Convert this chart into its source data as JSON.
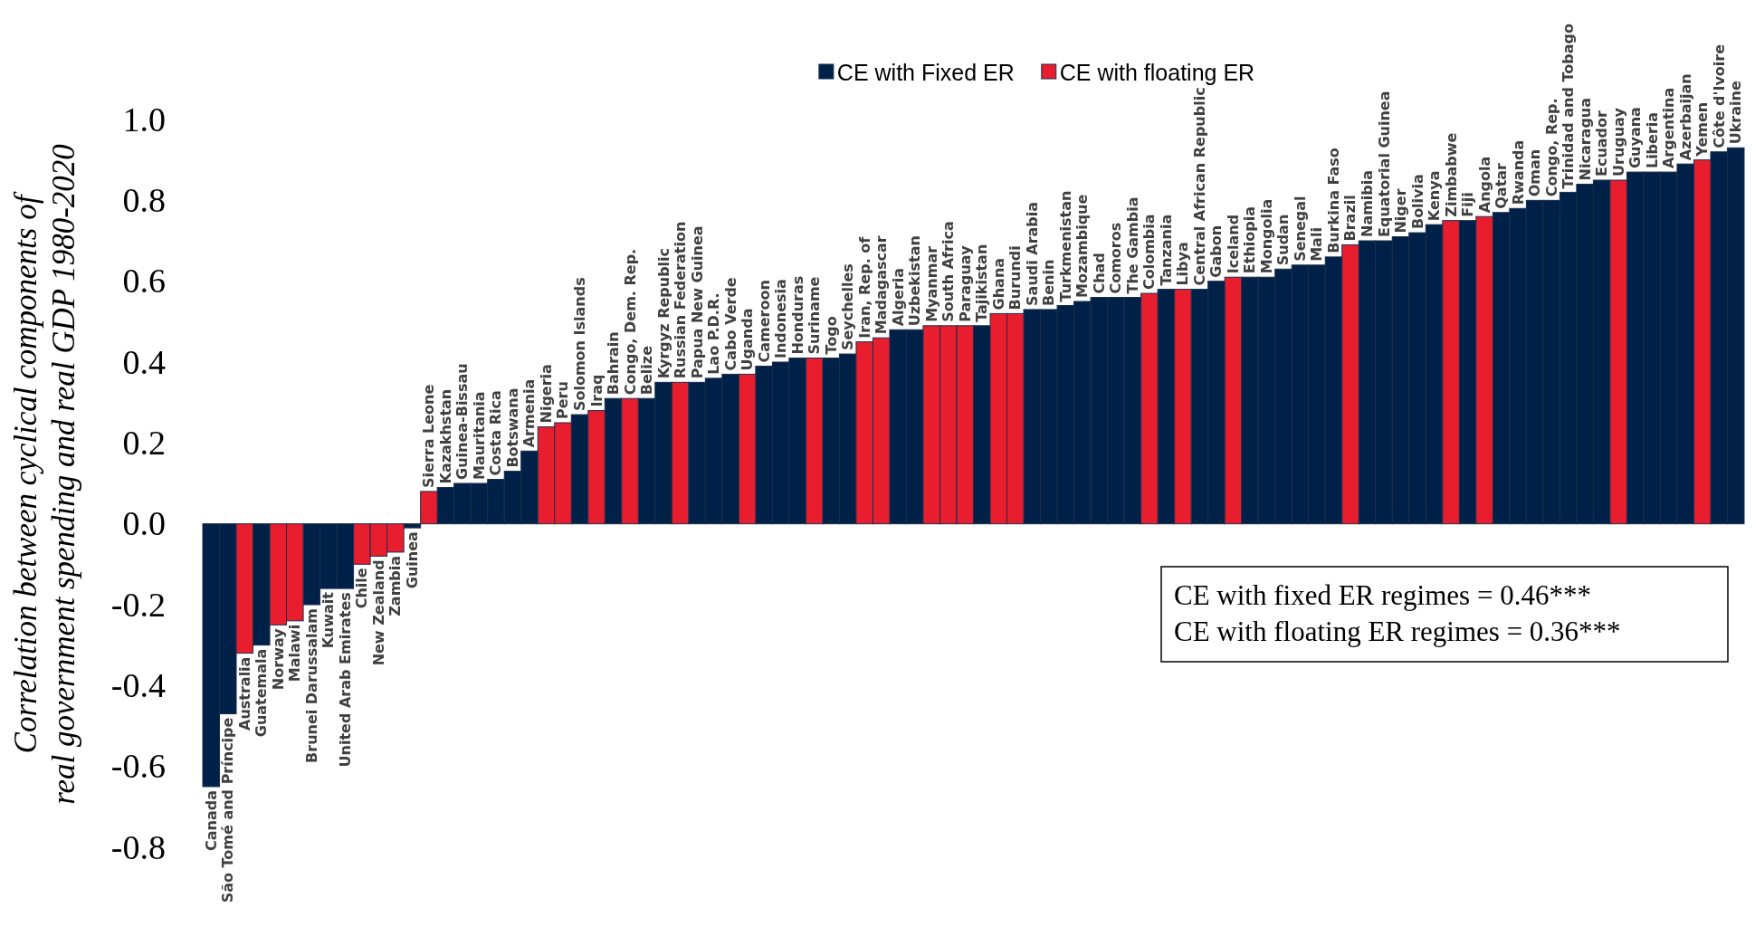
{
  "chart_data": {
    "type": "bar",
    "ylabel": "Correlation between cyclical components of real government spending and real GDP 1980-2020",
    "categories": [
      "Canada",
      "São Tomé and Príncipe",
      "Australia",
      "Guatemala",
      "Norway",
      "Malawi",
      "Brunei Darussalam",
      "Kuwait",
      "United Arab Emirates",
      "Chile",
      "New Zealand",
      "Zambia",
      "Guinea",
      "Sierra Leone",
      "Kazakhstan",
      "Guinea-Bissau",
      "Mauritania",
      "Costa Rica",
      "Botswana",
      "Armenia",
      "Nigeria",
      "Peru",
      "Solomon Islands",
      "Iraq",
      "Bahrain",
      "Congo, Dem. Rep.",
      "Belize",
      "Kyrgyz Republic",
      "Russian Federation",
      "Papua New Guinea",
      "Lao P.D.R.",
      "Cabo Verde",
      "Uganda",
      "Cameroon",
      "Indonesia",
      "Honduras",
      "Suriname",
      "Togo",
      "Seychelles",
      "Iran, Rep. of",
      "Madagascar",
      "Algeria",
      "Uzbekistan",
      "Myanmar",
      "South Africa",
      "Paraguay",
      "Tajikistan",
      "Ghana",
      "Burundi",
      "Saudi Arabia",
      "Benin",
      "Turkmenistan",
      "Mozambique",
      "Chad",
      "Comoros",
      "The Gambia",
      "Colombia",
      "Tanzania",
      "Libya",
      "Central African Republic",
      "Gabon",
      "Iceland",
      "Ethiopia",
      "Mongolia",
      "Sudan",
      "Senegal",
      "Mali",
      "Burkina Faso",
      "Brazil",
      "Namibia",
      "Equatorial Guinea",
      "Niger",
      "Bolivia",
      "Kenya",
      "Zimbabwe",
      "Fiji",
      "Angola",
      "Qatar",
      "Rwanda",
      "Oman",
      "Congo, Rep.",
      "Trinidad and Tobago",
      "Nicaragua",
      "Ecuador",
      "Uruguay",
      "Guyana",
      "Liberia",
      "Argentina",
      "Azerbaijan",
      "Yemen",
      "Côte d'Ivoire",
      "Ukraine"
    ],
    "series": [
      {
        "name": "CE with Fixed ER",
        "color": "#002147",
        "values": [
          -0.65,
          -0.47,
          null,
          -0.3,
          null,
          null,
          -0.2,
          -0.16,
          -0.16,
          null,
          null,
          null,
          -0.01,
          null,
          0.09,
          0.1,
          0.1,
          0.11,
          0.13,
          0.18,
          null,
          null,
          0.27,
          null,
          0.31,
          null,
          0.31,
          0.35,
          null,
          0.35,
          0.36,
          0.37,
          null,
          0.39,
          0.4,
          0.41,
          null,
          0.41,
          0.42,
          null,
          null,
          0.48,
          0.48,
          null,
          null,
          null,
          0.49,
          null,
          null,
          0.53,
          0.53,
          0.54,
          0.55,
          0.56,
          0.56,
          0.56,
          null,
          0.58,
          null,
          0.58,
          0.6,
          null,
          0.61,
          0.61,
          0.63,
          0.64,
          0.64,
          0.66,
          null,
          0.7,
          0.7,
          0.71,
          0.72,
          0.74,
          null,
          0.75,
          null,
          0.77,
          0.78,
          0.8,
          0.8,
          0.82,
          0.84,
          0.85,
          null,
          0.87,
          0.87,
          0.87,
          0.89,
          null,
          0.92,
          0.93
        ]
      },
      {
        "name": "CE with floating ER",
        "color": "#e81e2e",
        "values": [
          null,
          null,
          -0.32,
          null,
          -0.25,
          -0.24,
          null,
          null,
          null,
          -0.1,
          -0.08,
          -0.07,
          null,
          0.08,
          null,
          null,
          null,
          null,
          null,
          null,
          0.24,
          0.25,
          null,
          0.28,
          null,
          0.31,
          null,
          null,
          0.35,
          null,
          null,
          null,
          0.37,
          null,
          null,
          null,
          0.41,
          null,
          null,
          0.45,
          0.46,
          null,
          null,
          0.49,
          0.49,
          0.49,
          null,
          0.52,
          0.52,
          null,
          null,
          null,
          null,
          null,
          null,
          null,
          0.57,
          null,
          0.58,
          null,
          null,
          0.61,
          null,
          null,
          null,
          null,
          null,
          null,
          0.69,
          null,
          null,
          null,
          null,
          null,
          0.75,
          null,
          0.76,
          null,
          null,
          null,
          null,
          null,
          null,
          null,
          0.85,
          null,
          null,
          null,
          null,
          0.9,
          null,
          null
        ]
      }
    ],
    "ylim": [
      -0.8,
      1.0
    ],
    "yticks": [
      {
        "value": -0.8,
        "label": "-0.8"
      },
      {
        "value": -0.6,
        "label": "-0.6"
      },
      {
        "value": -0.4,
        "label": "-0.4"
      },
      {
        "value": -0.2,
        "label": "-0.2"
      },
      {
        "value": 0,
        "label": "0.0"
      },
      {
        "value": 0.2,
        "label": "0.2"
      },
      {
        "value": 0.4,
        "label": "0.4"
      },
      {
        "value": 0.6,
        "label": "0.6"
      },
      {
        "value": 0.8,
        "label": "0.8"
      },
      {
        "value": 1,
        "label": "1.0"
      }
    ],
    "legend": "top",
    "annotations": [
      "CE with fixed ER regimes = 0.46***",
      "CE with floating ER regimes = 0.36***"
    ]
  }
}
